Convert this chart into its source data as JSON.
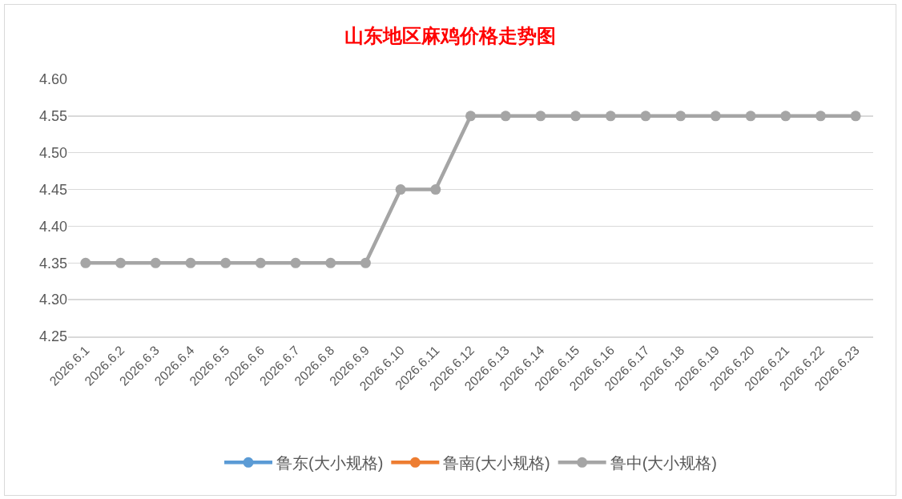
{
  "chart_data": {
    "type": "line",
    "title": "山东地区麻鸡价格走势图",
    "categories": [
      "2026.6.1",
      "2026.6.2",
      "2026.6.3",
      "2026.6.4",
      "2026.6.5",
      "2026.6.6",
      "2026.6.7",
      "2026.6.8",
      "2026.6.9",
      "2026.6.10",
      "2026.6.11",
      "2026.6.12",
      "2026.6.13",
      "2026.6.14",
      "2026.6.15",
      "2026.6.16",
      "2026.6.17",
      "2026.6.18",
      "2026.6.19",
      "2026.6.20",
      "2026.6.21",
      "2026.6.22",
      "2026.6.23"
    ],
    "series": [
      {
        "name": "鲁东(大小规格)",
        "color": "#5b9bd5",
        "values": [
          null,
          null,
          null,
          null,
          null,
          null,
          null,
          null,
          null,
          null,
          null,
          null,
          null,
          null,
          null,
          null,
          null,
          null,
          null,
          null,
          null,
          null,
          null
        ]
      },
      {
        "name": "鲁南(大小规格)",
        "color": "#ed7d31",
        "values": [
          null,
          null,
          null,
          null,
          null,
          null,
          null,
          null,
          null,
          null,
          null,
          null,
          null,
          null,
          null,
          null,
          null,
          null,
          null,
          null,
          null,
          null,
          null
        ]
      },
      {
        "name": "鲁中(大小规格)",
        "color": "#a5a5a5",
        "values": [
          4.35,
          4.35,
          4.35,
          4.35,
          4.35,
          4.35,
          4.35,
          4.35,
          4.35,
          4.45,
          4.45,
          4.55,
          4.55,
          4.55,
          4.55,
          4.55,
          4.55,
          4.55,
          4.55,
          4.55,
          4.55,
          4.55,
          4.55
        ]
      }
    ],
    "ylim": [
      4.25,
      4.6
    ],
    "yticks": [
      {
        "value": 4.25,
        "label": "4.25"
      },
      {
        "value": 4.3,
        "label": "4.30"
      },
      {
        "value": 4.35,
        "label": "4.35"
      },
      {
        "value": 4.4,
        "label": "4.40"
      },
      {
        "value": 4.45,
        "label": "4.45"
      },
      {
        "value": 4.5,
        "label": "4.50"
      },
      {
        "value": 4.55,
        "label": "4.55"
      },
      {
        "value": 4.6,
        "label": "4.60"
      }
    ],
    "grid": "y",
    "legend": "bottom",
    "marker": "circle",
    "line_style": "solid"
  }
}
